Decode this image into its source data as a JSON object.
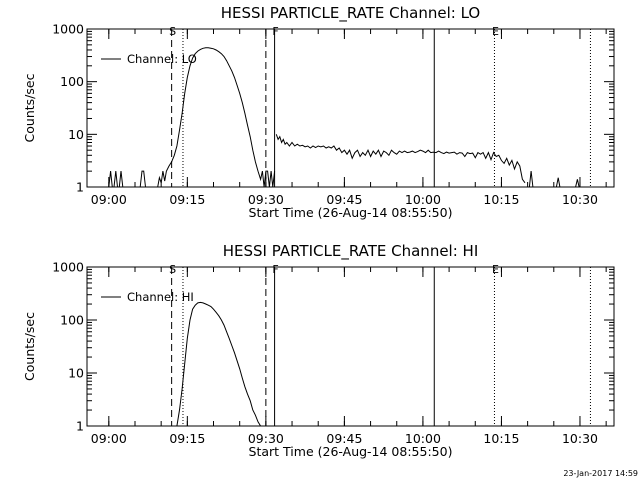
{
  "chart_data": [
    {
      "type": "line",
      "title": "HESSI PARTICLE_RATE Channel: LO",
      "xlabel": "Start Time (26-Aug-14 08:55:50)",
      "ylabel": "Counts/sec",
      "yscale": "log",
      "xlim": [
        "08:55:50",
        "10:36:30"
      ],
      "ylim": [
        1,
        1000
      ],
      "xticks": [
        "09:00",
        "09:15",
        "09:30",
        "09:45",
        "10:00",
        "10:15",
        "10:30"
      ],
      "yticks": [
        "1",
        "10",
        "100",
        "1000"
      ],
      "grid": false,
      "legend": {
        "position": "top-left",
        "entries": [
          "Channel: LO"
        ]
      },
      "markers": [
        {
          "label": "S",
          "time": "09:12:00",
          "style": "dashed"
        },
        {
          "label": "",
          "time": "09:14:10",
          "style": "dotted"
        },
        {
          "label": "",
          "time": "09:30:00",
          "style": "dashed"
        },
        {
          "label": "F",
          "time": "09:31:40",
          "style": "solid"
        },
        {
          "label": "",
          "time": "10:02:10",
          "style": "solid"
        },
        {
          "label": "E",
          "time": "10:13:40",
          "style": "dotted"
        },
        {
          "label": "",
          "time": "10:32:00",
          "style": "dotted"
        }
      ],
      "series": [
        {
          "name": "Channel: LO",
          "segments": [
            {
              "x": [
                "09:00:00",
                "09:00:20",
                "09:00:40",
                "09:01:00",
                "09:01:20",
                "09:01:40",
                "09:02:00",
                "09:02:20",
                "09:02:40",
                "09:03:00"
              ],
              "y": [
                1,
                2,
                1,
                1,
                2,
                1,
                1,
                2,
                1,
                1
              ]
            },
            {
              "x": [
                "09:06:00",
                "09:06:20",
                "09:06:40",
                "09:07:00"
              ],
              "y": [
                1,
                2,
                2,
                1
              ]
            },
            {
              "x": [
                "09:09:20",
                "09:09:40",
                "09:10:00",
                "09:10:20",
                "09:10:40",
                "09:11:00",
                "09:11:30",
                "09:12:00",
                "09:12:30",
                "09:13:00",
                "09:13:30",
                "09:14:00",
                "09:14:30",
                "09:15:00",
                "09:15:30",
                "09:16:00",
                "09:16:30",
                "09:17:00",
                "09:17:30",
                "09:18:00",
                "09:18:30",
                "09:19:00",
                "09:19:30",
                "09:20:00",
                "09:20:30",
                "09:21:00",
                "09:21:30",
                "09:22:00",
                "09:22:30",
                "09:23:00",
                "09:23:30",
                "09:24:00",
                "09:24:30",
                "09:25:00",
                "09:25:30",
                "09:26:00",
                "09:26:30",
                "09:27:00",
                "09:27:30",
                "09:28:00",
                "09:28:30",
                "09:29:00",
                "09:29:20",
                "09:29:40",
                "09:30:00",
                "09:30:20",
                "09:30:40",
                "09:31:00",
                "09:31:20",
                "09:31:40"
              ],
              "y": [
                1,
                1.5,
                1.2,
                2,
                1.3,
                2,
                2.5,
                3,
                4,
                6,
                12,
                25,
                60,
                120,
                200,
                280,
                340,
                380,
                410,
                430,
                440,
                440,
                430,
                420,
                400,
                370,
                340,
                300,
                250,
                200,
                160,
                120,
                85,
                60,
                40,
                25,
                15,
                9,
                5,
                3,
                2,
                1.4,
                2,
                1,
                2,
                2,
                1,
                2,
                1,
                2
              ]
            },
            {
              "x": [
                "09:32:00",
                "09:32:20",
                "09:32:40",
                "09:33:00",
                "09:33:20",
                "09:33:40",
                "09:34:00",
                "09:34:30",
                "09:35:00",
                "09:35:30",
                "09:36:00",
                "09:36:30",
                "09:37:00",
                "09:37:30",
                "09:38:00",
                "09:38:30",
                "09:39:00",
                "09:39:30",
                "09:40:00",
                "09:40:30",
                "09:41:00",
                "09:41:30",
                "09:42:00",
                "09:42:30",
                "09:43:00",
                "09:43:30",
                "09:44:00",
                "09:44:30",
                "09:45:00",
                "09:45:30",
                "09:46:00",
                "09:46:30",
                "09:47:00",
                "09:47:30",
                "09:48:00",
                "09:48:30",
                "09:49:00",
                "09:49:30",
                "09:50:00",
                "09:50:30",
                "09:51:00",
                "09:51:30",
                "09:52:00",
                "09:52:30",
                "09:53:00",
                "09:53:30",
                "09:54:00",
                "09:54:30",
                "09:55:00",
                "09:55:30",
                "09:56:00",
                "09:56:30",
                "09:57:00",
                "09:57:30",
                "09:58:00",
                "09:58:30",
                "09:59:00",
                "09:59:30",
                "10:00:00",
                "10:00:30",
                "10:01:00",
                "10:01:30",
                "10:02:00",
                "10:02:30",
                "10:03:00",
                "10:03:30",
                "10:04:00",
                "10:04:30",
                "10:05:00",
                "10:05:30",
                "10:06:00",
                "10:06:30",
                "10:07:00",
                "10:07:30",
                "10:08:00",
                "10:08:30",
                "10:09:00",
                "10:09:30",
                "10:10:00",
                "10:10:30",
                "10:11:00",
                "10:11:30",
                "10:12:00",
                "10:12:30",
                "10:13:00",
                "10:13:30",
                "10:14:00",
                "10:14:30",
                "10:15:00",
                "10:15:30",
                "10:16:00",
                "10:16:30",
                "10:17:00",
                "10:17:30",
                "10:18:00",
                "10:18:30",
                "10:19:00",
                "10:19:30"
              ],
              "y": [
                10,
                8,
                9,
                7,
                8,
                6.5,
                7,
                6,
                7,
                6,
                6.5,
                6,
                6.2,
                5.8,
                6,
                5.5,
                6,
                5.6,
                6,
                5.8,
                6,
                5.5,
                5.8,
                5.5,
                6,
                5,
                5.5,
                4.5,
                5,
                4.2,
                5,
                3.5,
                4.5,
                5,
                3.8,
                4.5,
                4,
                5,
                3.8,
                4.8,
                4.2,
                5,
                3.8,
                4.8,
                4.5,
                4,
                5,
                4.5,
                4.2,
                4.8,
                4.5,
                4.8,
                4.5,
                4.6,
                4.8,
                4.5,
                4.7,
                5,
                4.8,
                4.5,
                5,
                4.5,
                4.6,
                4.5,
                4.8,
                4.5,
                4.3,
                4.6,
                4.4,
                4.5,
                4.6,
                4.2,
                4.5,
                4.4,
                3.8,
                4.5,
                4.3,
                4.4,
                3.6,
                4.5,
                4.2,
                4.5,
                3.5,
                4.5,
                3.3,
                4.5,
                3.8,
                4,
                3.2,
                2.8,
                3.5,
                2.6,
                3.2,
                2.2,
                3,
                2.5,
                1.4,
                1.2
              ]
            },
            {
              "x": [
                "10:20:20",
                "10:20:40",
                "10:21:00",
                "10:21:20"
              ],
              "y": [
                1,
                2,
                1,
                1
              ]
            },
            {
              "x": [
                "10:25:30",
                "10:25:50",
                "10:26:10"
              ],
              "y": [
                1,
                1.5,
                1
              ]
            },
            {
              "x": [
                "10:29:10",
                "10:29:30",
                "10:29:50"
              ],
              "y": [
                1,
                1.4,
                1
              ]
            }
          ]
        }
      ]
    },
    {
      "type": "line",
      "title": "HESSI PARTICLE_RATE Channel: HI",
      "xlabel": "Start Time (26-Aug-14 08:55:50)",
      "ylabel": "Counts/sec",
      "yscale": "log",
      "xlim": [
        "08:55:50",
        "10:36:30"
      ],
      "ylim": [
        1,
        1000
      ],
      "xticks": [
        "09:00",
        "09:15",
        "09:30",
        "09:45",
        "10:00",
        "10:15",
        "10:30"
      ],
      "yticks": [
        "1",
        "10",
        "100",
        "1000"
      ],
      "grid": false,
      "legend": {
        "position": "top-left",
        "entries": [
          "Channel: HI"
        ]
      },
      "markers": [
        {
          "label": "S",
          "time": "09:12:00",
          "style": "dashed"
        },
        {
          "label": "",
          "time": "09:14:10",
          "style": "dotted"
        },
        {
          "label": "",
          "time": "09:30:00",
          "style": "dashed"
        },
        {
          "label": "F",
          "time": "09:31:40",
          "style": "solid"
        },
        {
          "label": "",
          "time": "10:02:10",
          "style": "solid"
        },
        {
          "label": "E",
          "time": "10:13:40",
          "style": "dotted"
        },
        {
          "label": "",
          "time": "10:32:00",
          "style": "dotted"
        }
      ],
      "series": [
        {
          "name": "Channel: HI",
          "segments": [
            {
              "x": [
                "09:13:00",
                "09:13:30",
                "09:14:00",
                "09:14:30",
                "09:15:00",
                "09:15:30",
                "09:16:00",
                "09:16:30",
                "09:17:00",
                "09:17:30",
                "09:18:00",
                "09:18:30",
                "09:19:00",
                "09:19:30",
                "09:20:00",
                "09:20:30",
                "09:21:00",
                "09:21:30",
                "09:22:00",
                "09:22:30",
                "09:23:00",
                "09:23:30",
                "09:24:00",
                "09:24:30",
                "09:25:00",
                "09:25:30",
                "09:26:00",
                "09:26:30",
                "09:27:00",
                "09:27:30",
                "09:28:00",
                "09:28:30",
                "09:29:00"
              ],
              "y": [
                1,
                2,
                5,
                15,
                45,
                100,
                160,
                190,
                210,
                215,
                210,
                200,
                190,
                180,
                160,
                140,
                120,
                100,
                80,
                60,
                45,
                33,
                24,
                17,
                12,
                8,
                5.5,
                4,
                3,
                2,
                1.6,
                1.2,
                1
              ]
            }
          ]
        }
      ]
    }
  ],
  "timestamp": "23-Jan-2017 14:59"
}
